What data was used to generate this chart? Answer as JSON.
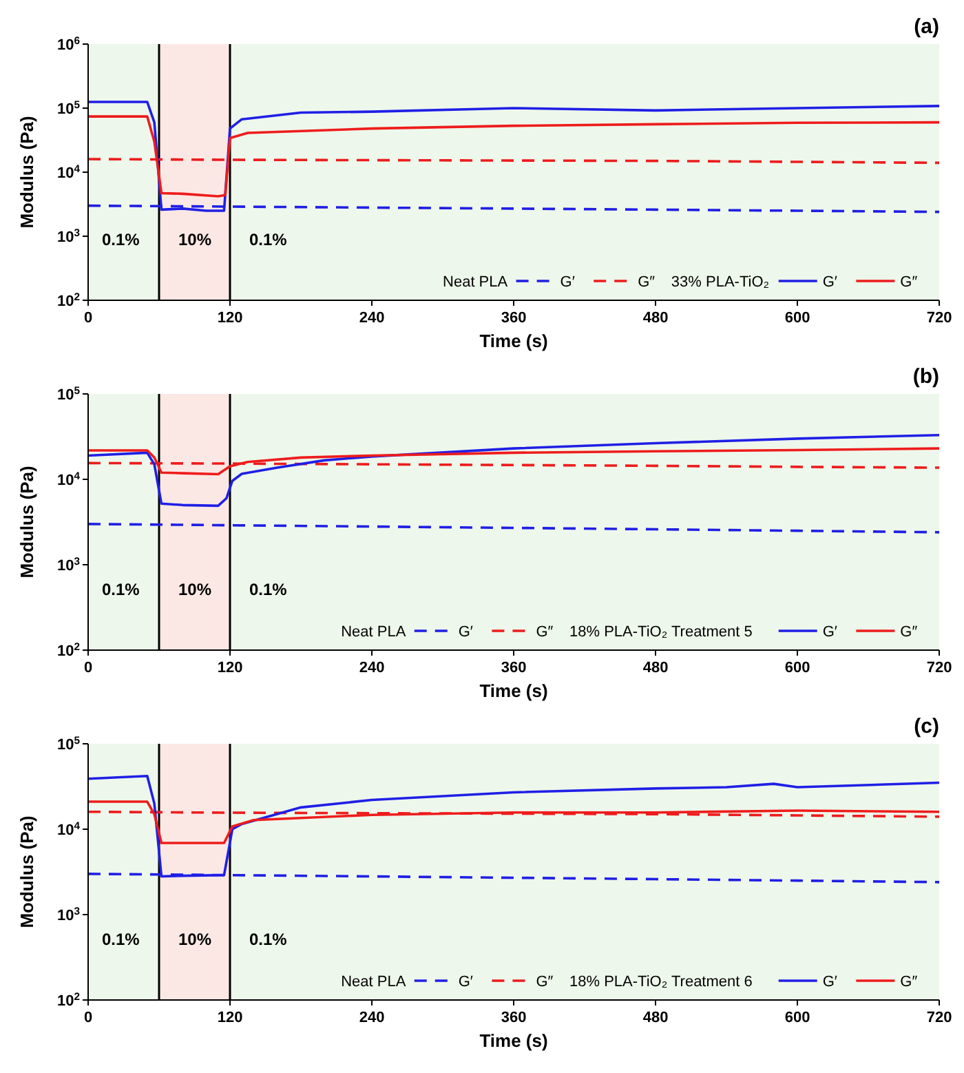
{
  "chart_data": [
    {
      "type": "line",
      "title": "(a)",
      "xlabel": "Time (s)",
      "ylabel": "Modulus (Pa)",
      "log": "y",
      "legend": "bottom right",
      "xlim": [
        0,
        720
      ],
      "xticks": [
        0,
        120,
        240,
        360,
        480,
        600,
        720
      ],
      "ylim": [
        100,
        1000000
      ],
      "yticks": [
        {
          "value": 100,
          "label": "10$^{2}$"
        },
        {
          "value": 1000,
          "label": "10$^{3}$"
        },
        {
          "value": 10000,
          "label": "10$^{4}$"
        },
        {
          "value": 100000,
          "label": "10$^{5}$"
        },
        {
          "value": 1000000,
          "label": "10$^{6}$"
        }
      ],
      "bands": [
        {
          "axis": "x",
          "from": 0,
          "to": 60,
          "label": "0.1%",
          "color": "#eef7eb"
        },
        {
          "axis": "x",
          "from": 60,
          "to": 120,
          "label": "10%",
          "color": "#fbe8e4"
        },
        {
          "axis": "x",
          "from": 120,
          "to": 720,
          "label": "0.1%",
          "color": "#eef7eb"
        }
      ],
      "ref_lines": [
        {
          "axis": "x",
          "value": 60,
          "color": "#000000"
        },
        {
          "axis": "x",
          "value": 120,
          "color": "#000000"
        }
      ],
      "annotations": [
        "Neat PLA",
        "33% PLA-TiO₂"
      ],
      "series": [
        {
          "name": "G′",
          "color": "#1f1fe6",
          "line_style": "dashed",
          "x": [
            0,
            60,
            120,
            240,
            360,
            480,
            600,
            720
          ],
          "values": [
            3000,
            2950,
            2900,
            2800,
            2700,
            2600,
            2500,
            2400
          ]
        },
        {
          "name": "G″",
          "color": "#ee1c1c",
          "line_style": "dashed",
          "x": [
            0,
            60,
            120,
            240,
            360,
            480,
            600,
            720
          ],
          "values": [
            16000,
            15800,
            15600,
            15400,
            15200,
            15000,
            14500,
            14000
          ]
        },
        {
          "name": "G′",
          "color": "#1f1fe6",
          "line_style": "solid",
          "x": [
            0,
            50,
            56,
            62,
            80,
            100,
            115,
            120,
            130,
            180,
            240,
            360,
            480,
            600,
            720
          ],
          "values": [
            125000,
            125000,
            60000,
            2600,
            2700,
            2500,
            2500,
            48000,
            67000,
            85000,
            88000,
            100000,
            92000,
            100000,
            108000
          ]
        },
        {
          "name": "G″",
          "color": "#ee1c1c",
          "line_style": "solid",
          "x": [
            0,
            50,
            56,
            62,
            80,
            110,
            116,
            120,
            135,
            240,
            360,
            480,
            600,
            720
          ],
          "values": [
            74000,
            74000,
            30000,
            4700,
            4600,
            4200,
            4400,
            34000,
            41000,
            48000,
            53000,
            56000,
            59000,
            60000
          ]
        }
      ]
    },
    {
      "type": "line",
      "title": "(b)",
      "xlabel": "Time (s)",
      "ylabel": "Modulus (Pa)",
      "log": "y",
      "legend": "bottom right",
      "xlim": [
        0,
        720
      ],
      "xticks": [
        0,
        120,
        240,
        360,
        480,
        600,
        720
      ],
      "ylim": [
        100,
        100000
      ],
      "yticks": [
        {
          "value": 100,
          "label": "10$^{2}$"
        },
        {
          "value": 1000,
          "label": "10$^{3}$"
        },
        {
          "value": 10000,
          "label": "10$^{4}$"
        },
        {
          "value": 100000,
          "label": "10$^{5}$"
        }
      ],
      "bands": [
        {
          "axis": "x",
          "from": 0,
          "to": 60,
          "label": "0.1%",
          "color": "#eef7eb"
        },
        {
          "axis": "x",
          "from": 60,
          "to": 120,
          "label": "10%",
          "color": "#fbe8e4"
        },
        {
          "axis": "x",
          "from": 120,
          "to": 720,
          "label": "0.1%",
          "color": "#eef7eb"
        }
      ],
      "ref_lines": [
        {
          "axis": "x",
          "value": 60,
          "color": "#000000"
        },
        {
          "axis": "x",
          "value": 120,
          "color": "#000000"
        }
      ],
      "annotations": [
        "Neat PLA",
        "18% PLA-TiO₂ Treatment 5"
      ],
      "series": [
        {
          "name": "G′",
          "color": "#1f1fe6",
          "line_style": "dashed",
          "x": [
            0,
            60,
            120,
            240,
            360,
            480,
            600,
            720
          ],
          "values": [
            3000,
            2950,
            2900,
            2800,
            2700,
            2600,
            2500,
            2400
          ]
        },
        {
          "name": "G″",
          "color": "#ee1c1c",
          "line_style": "dashed",
          "x": [
            0,
            60,
            120,
            240,
            360,
            480,
            600,
            720
          ],
          "values": [
            15500,
            15400,
            15300,
            15000,
            14700,
            14400,
            14000,
            13700
          ]
        },
        {
          "name": "G′",
          "color": "#1f1fe6",
          "line_style": "solid",
          "x": [
            0,
            50,
            56,
            62,
            80,
            110,
            117,
            122,
            130,
            160,
            200,
            240,
            360,
            480,
            600,
            720
          ],
          "values": [
            19000,
            20500,
            15000,
            5200,
            5000,
            4900,
            6000,
            9600,
            11600,
            13700,
            16700,
            18500,
            23000,
            26500,
            30000,
            33000
          ]
        },
        {
          "name": "G″",
          "color": "#ee1c1c",
          "line_style": "solid",
          "x": [
            0,
            50,
            56,
            62,
            80,
            110,
            120,
            135,
            180,
            240,
            360,
            480,
            600,
            720
          ],
          "values": [
            21800,
            21800,
            18000,
            12000,
            11800,
            11500,
            14200,
            16000,
            18000,
            19000,
            20500,
            21300,
            22000,
            23000
          ]
        }
      ]
    },
    {
      "type": "line",
      "title": "(c)",
      "xlabel": "Time (s)",
      "ylabel": "Modulus (Pa)",
      "log": "y",
      "legend": "bottom right",
      "xlim": [
        0,
        720
      ],
      "xticks": [
        0,
        120,
        240,
        360,
        480,
        600,
        720
      ],
      "ylim": [
        100,
        100000
      ],
      "yticks": [
        {
          "value": 100,
          "label": "10$^{2}$"
        },
        {
          "value": 1000,
          "label": "10$^{3}$"
        },
        {
          "value": 10000,
          "label": "10$^{4}$"
        },
        {
          "value": 100000,
          "label": "10$^{5}$"
        }
      ],
      "bands": [
        {
          "axis": "x",
          "from": 0,
          "to": 60,
          "label": "0.1%",
          "color": "#eef7eb"
        },
        {
          "axis": "x",
          "from": 60,
          "to": 120,
          "label": "10%",
          "color": "#fbe8e4"
        },
        {
          "axis": "x",
          "from": 120,
          "to": 720,
          "label": "0.1%",
          "color": "#eef7eb"
        }
      ],
      "ref_lines": [
        {
          "axis": "x",
          "value": 60,
          "color": "#000000"
        },
        {
          "axis": "x",
          "value": 120,
          "color": "#000000"
        }
      ],
      "annotations": [
        "Neat PLA",
        "18% PLA-TiO₂ Treatment 6"
      ],
      "series": [
        {
          "name": "G′",
          "color": "#1f1fe6",
          "line_style": "dashed",
          "x": [
            0,
            60,
            120,
            240,
            360,
            480,
            600,
            720
          ],
          "values": [
            3000,
            2950,
            2900,
            2800,
            2700,
            2600,
            2500,
            2400
          ]
        },
        {
          "name": "G″",
          "color": "#ee1c1c",
          "line_style": "dashed",
          "x": [
            0,
            60,
            120,
            240,
            360,
            480,
            600,
            720
          ],
          "values": [
            16000,
            15800,
            15600,
            15400,
            15200,
            15000,
            14500,
            14000
          ]
        },
        {
          "name": "G′",
          "color": "#1f1fe6",
          "line_style": "solid",
          "x": [
            0,
            50,
            56,
            62,
            80,
            115,
            122,
            130,
            180,
            240,
            360,
            480,
            540,
            580,
            600,
            720
          ],
          "values": [
            39000,
            42000,
            20000,
            2800,
            2850,
            2900,
            10000,
            11500,
            18000,
            22000,
            27000,
            30000,
            31000,
            34000,
            31000,
            35000
          ]
        },
        {
          "name": "G″",
          "color": "#ee1c1c",
          "line_style": "solid",
          "x": [
            0,
            50,
            56,
            62,
            80,
            115,
            122,
            140,
            240,
            360,
            480,
            600,
            720
          ],
          "values": [
            21000,
            21000,
            15000,
            6900,
            6900,
            6900,
            10800,
            12800,
            14700,
            15700,
            15700,
            16500,
            16000
          ]
        }
      ]
    }
  ]
}
